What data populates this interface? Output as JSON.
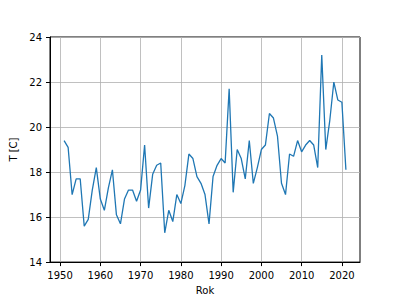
{
  "chart_data": {
    "type": "line",
    "xlabel": "Rok",
    "ylabel": "T [C]",
    "x": [
      1951,
      1952,
      1953,
      1954,
      1955,
      1956,
      1957,
      1958,
      1959,
      1960,
      1961,
      1962,
      1963,
      1964,
      1965,
      1966,
      1967,
      1968,
      1969,
      1970,
      1971,
      1972,
      1973,
      1974,
      1975,
      1976,
      1977,
      1978,
      1979,
      1980,
      1981,
      1982,
      1983,
      1984,
      1985,
      1986,
      1987,
      1988,
      1989,
      1990,
      1991,
      1992,
      1993,
      1994,
      1995,
      1996,
      1997,
      1998,
      1999,
      2000,
      2001,
      2002,
      2003,
      2004,
      2005,
      2006,
      2007,
      2008,
      2009,
      2010,
      2011,
      2012,
      2013,
      2014,
      2015,
      2016,
      2017,
      2018,
      2019,
      2020,
      2021
    ],
    "values": [
      19.4,
      19.1,
      17.0,
      17.7,
      17.7,
      15.6,
      15.9,
      17.2,
      18.2,
      16.8,
      16.3,
      17.3,
      18.1,
      16.1,
      15.7,
      16.8,
      17.2,
      17.2,
      16.7,
      17.2,
      19.2,
      16.4,
      17.9,
      18.3,
      18.4,
      15.3,
      16.3,
      15.8,
      17.0,
      16.6,
      17.4,
      18.8,
      18.6,
      17.8,
      17.5,
      17.0,
      15.7,
      17.8,
      18.3,
      18.6,
      18.4,
      21.7,
      17.1,
      19.0,
      18.6,
      17.7,
      19.4,
      17.5,
      18.2,
      19.0,
      19.2,
      20.6,
      20.4,
      19.6,
      17.5,
      17.0,
      18.8,
      18.7,
      19.4,
      18.9,
      19.2,
      19.4,
      19.2,
      18.2,
      23.2,
      19.0,
      20.3,
      22.0,
      21.2,
      21.1,
      18.1
    ],
    "color": "#1f77b4",
    "xlim": [
      1947.5,
      2024.5
    ],
    "xticks": [
      1950,
      1960,
      1970,
      1980,
      1990,
      2000,
      2010,
      2020
    ],
    "ylim": [
      14,
      24
    ],
    "yticks": [
      14,
      16,
      18,
      20,
      22,
      24
    ],
    "grid": true
  }
}
